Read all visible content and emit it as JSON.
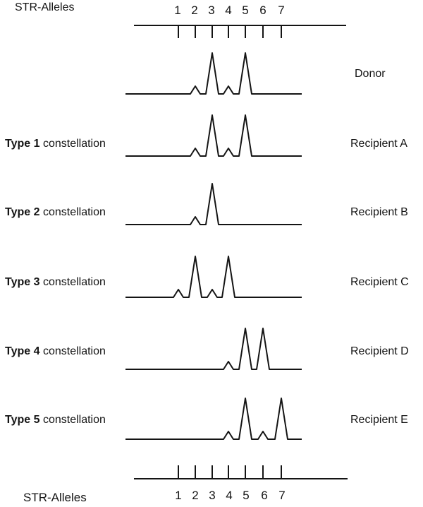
{
  "axes": {
    "top_label": "STR-Alleles",
    "bottom_label": "STR-Alleles"
  },
  "chart_data": {
    "type": "line",
    "x_axis_label": "STR-Alleles",
    "x_ticks": [
      "1",
      "2",
      "3",
      "4",
      "5",
      "6",
      "7"
    ],
    "series": [
      {
        "name": "Donor",
        "type_label": "",
        "type_suffix": "",
        "peaks": [
          {
            "allele": 2,
            "size": "small"
          },
          {
            "allele": 3,
            "size": "large"
          },
          {
            "allele": 4,
            "size": "small"
          },
          {
            "allele": 5,
            "size": "large"
          }
        ]
      },
      {
        "name": "Recipient A",
        "type_label": "Type 1",
        "type_suffix": " constellation",
        "peaks": [
          {
            "allele": 2,
            "size": "small"
          },
          {
            "allele": 3,
            "size": "large"
          },
          {
            "allele": 4,
            "size": "small"
          },
          {
            "allele": 5,
            "size": "large"
          }
        ]
      },
      {
        "name": "Recipient B",
        "type_label": "Type 2",
        "type_suffix": " constellation",
        "peaks": [
          {
            "allele": 2,
            "size": "small"
          },
          {
            "allele": 3,
            "size": "large"
          }
        ]
      },
      {
        "name": "Recipient C",
        "type_label": "Type 3",
        "type_suffix": " constellation",
        "peaks": [
          {
            "allele": 1,
            "size": "small"
          },
          {
            "allele": 2,
            "size": "large"
          },
          {
            "allele": 3,
            "size": "small"
          },
          {
            "allele": 4,
            "size": "large"
          }
        ]
      },
      {
        "name": "Recipient D",
        "type_label": "Type 4",
        "type_suffix": " constellation",
        "peaks": [
          {
            "allele": 4,
            "size": "small"
          },
          {
            "allele": 5,
            "size": "large"
          },
          {
            "allele": 6,
            "size": "large"
          }
        ]
      },
      {
        "name": "Recipient E",
        "type_label": "Type 5",
        "type_suffix": " constellation",
        "peaks": [
          {
            "allele": 4,
            "size": "small"
          },
          {
            "allele": 5,
            "size": "large"
          },
          {
            "allele": 6,
            "size": "small"
          },
          {
            "allele": 7,
            "size": "large"
          }
        ]
      }
    ]
  },
  "colors": {
    "line": "#141414",
    "background": "#ffffff",
    "text": "#141414"
  }
}
